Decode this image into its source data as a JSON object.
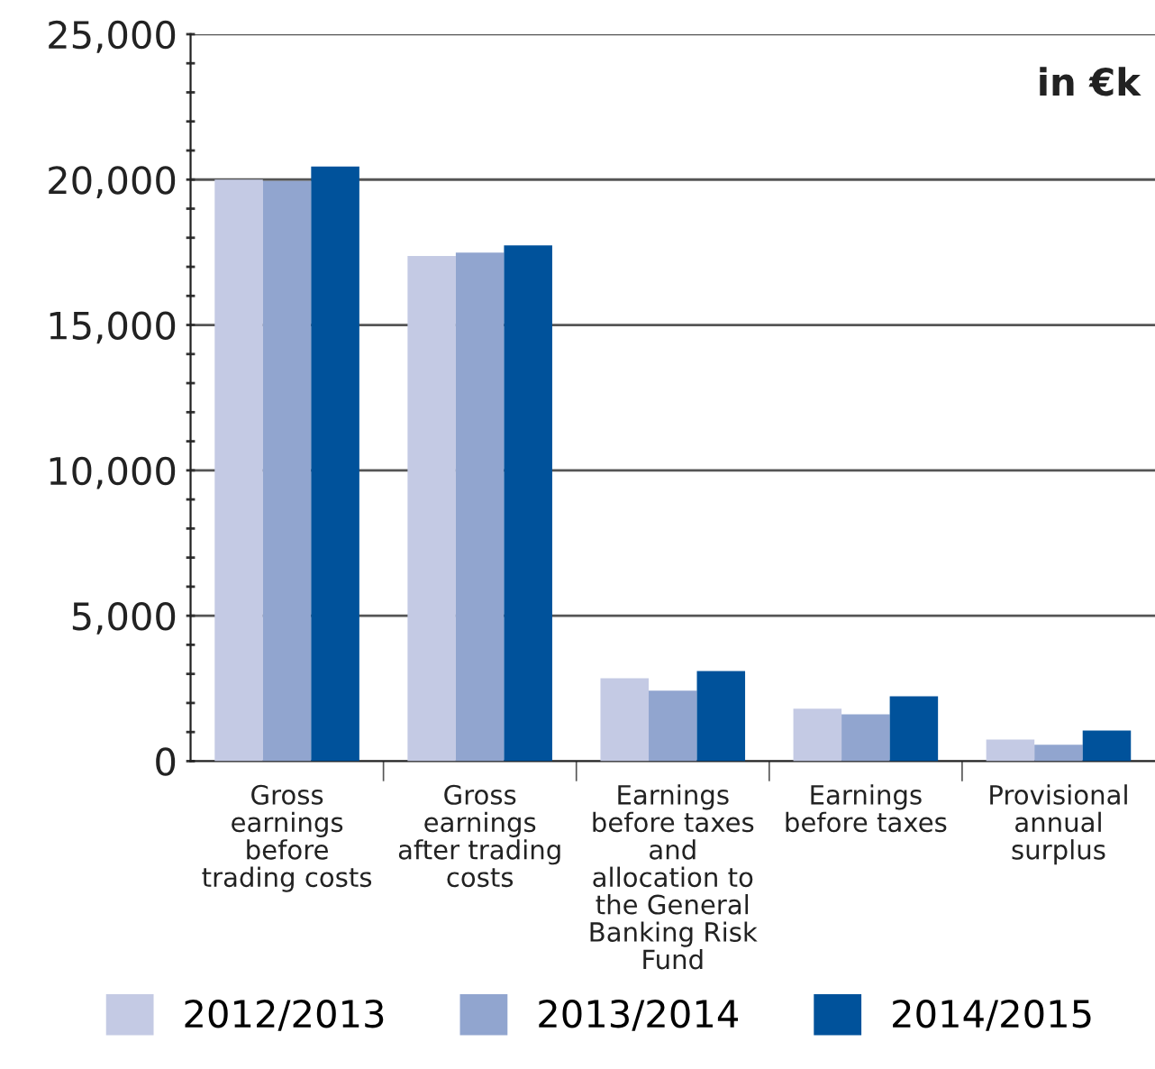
{
  "chart_data": {
    "type": "bar",
    "categories": [
      "Gross earnings before trading costs",
      "Gross earnings after trading costs",
      "Earnings before taxes and allocation to the General Banking Risk Fund",
      "Earnings before taxes",
      "Provisional annual surplus"
    ],
    "series": [
      {
        "name": "2012/2013",
        "color": "#c4cae4",
        "values": [
          20000,
          17370,
          2850,
          1800,
          740
        ]
      },
      {
        "name": "2013/2014",
        "color": "#91a5cf",
        "values": [
          19950,
          17490,
          2420,
          1610,
          560
        ]
      },
      {
        "name": "2014/2015",
        "color": "#00529b",
        "values": [
          20450,
          17740,
          3100,
          2230,
          1050
        ]
      }
    ],
    "annotations": [
      "in €k"
    ],
    "ylim": [
      0,
      25000
    ],
    "yticks": [
      {
        "value": 0,
        "label": "0"
      },
      {
        "value": 1000,
        "label": null
      },
      {
        "value": 2000,
        "label": null
      },
      {
        "value": 3000,
        "label": null
      },
      {
        "value": 4000,
        "label": null
      },
      {
        "value": 5000,
        "label": "5,000"
      },
      {
        "value": 6000,
        "label": null
      },
      {
        "value": 7000,
        "label": null
      },
      {
        "value": 8000,
        "label": null
      },
      {
        "value": 9000,
        "label": null
      },
      {
        "value": 10000,
        "label": "10,000"
      },
      {
        "value": 11000,
        "label": null
      },
      {
        "value": 12000,
        "label": null
      },
      {
        "value": 13000,
        "label": null
      },
      {
        "value": 14000,
        "label": null
      },
      {
        "value": 15000,
        "label": "15,000"
      },
      {
        "value": 16000,
        "label": null
      },
      {
        "value": 17000,
        "label": null
      },
      {
        "value": 18000,
        "label": null
      },
      {
        "value": 19000,
        "label": null
      },
      {
        "value": 20000,
        "label": "20,000"
      },
      {
        "value": 21000,
        "label": null
      },
      {
        "value": 22000,
        "label": null
      },
      {
        "value": 23000,
        "label": null
      },
      {
        "value": 24000,
        "label": null
      },
      {
        "value": 25000,
        "label": "25,000"
      }
    ],
    "grid": "y",
    "legend": "bottom"
  }
}
